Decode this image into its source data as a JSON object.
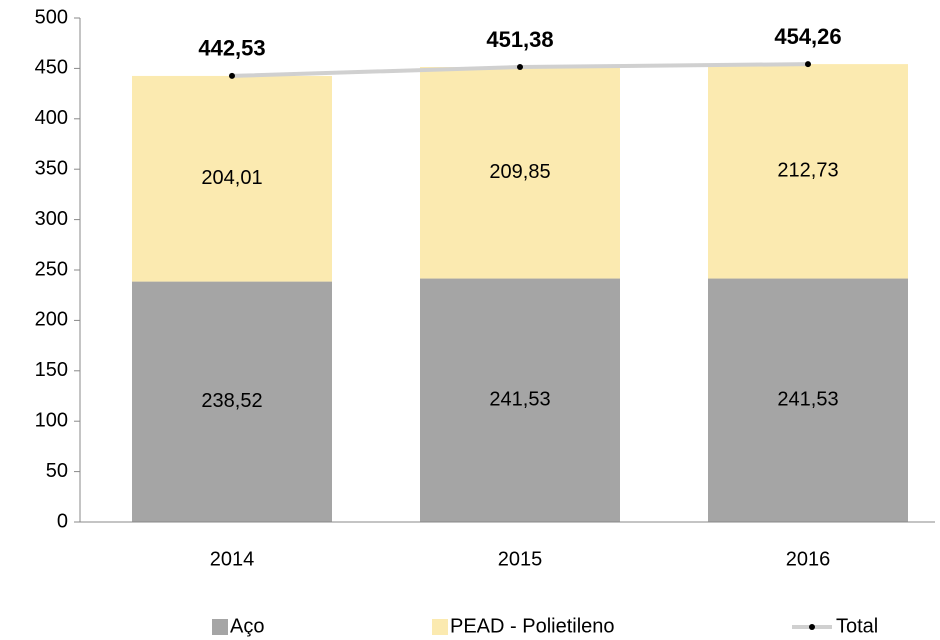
{
  "chart_data": {
    "type": "bar",
    "stacked": true,
    "categories": [
      "2014",
      "2015",
      "2016"
    ],
    "series": [
      {
        "name": "Aço",
        "color": "#a5a5a5",
        "values": [
          238.52,
          241.53,
          241.53
        ],
        "value_labels": [
          "238,52",
          "241,53",
          "241,53"
        ]
      },
      {
        "name": "PEAD - Polietileno",
        "color": "#fbeab0",
        "values": [
          204.01,
          209.85,
          212.73
        ],
        "value_labels": [
          "204,01",
          "209,85",
          "212,73"
        ]
      },
      {
        "name": "Total",
        "type": "line",
        "color": "#d0d0d0",
        "values": [
          442.53,
          451.38,
          454.26
        ],
        "value_labels": [
          "442,53",
          "451,38",
          "454,26"
        ]
      }
    ],
    "ylim": [
      0,
      500
    ],
    "yticks": [
      0,
      50,
      100,
      150,
      200,
      250,
      300,
      350,
      400,
      450,
      500
    ],
    "grid": false,
    "legend": "bottom"
  }
}
